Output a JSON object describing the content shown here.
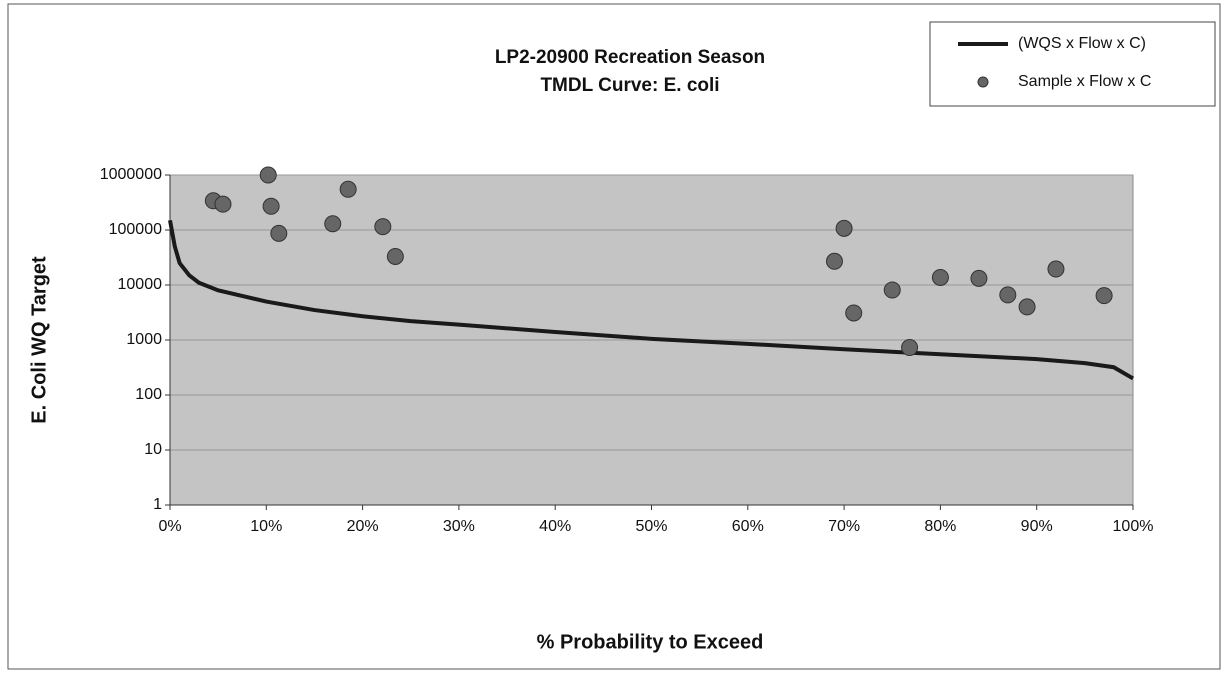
{
  "chart_data": {
    "type": "line",
    "title": "LP2-20900 Recreation Season",
    "subtitle": "TMDL Curve: E. coli",
    "x_label": "% Probability to Exceed",
    "y_label": "E. Coli WQ Target",
    "log_y": true,
    "legend": "top-right",
    "xlim": [
      0,
      100
    ],
    "xticks": [
      {
        "value": 0,
        "label": "0%"
      },
      {
        "value": 10,
        "label": "10%"
      },
      {
        "value": 20,
        "label": "20%"
      },
      {
        "value": 30,
        "label": "30%"
      },
      {
        "value": 40,
        "label": "40%"
      },
      {
        "value": 50,
        "label": "50%"
      },
      {
        "value": 60,
        "label": "60%"
      },
      {
        "value": 70,
        "label": "70%"
      },
      {
        "value": 80,
        "label": "80%"
      },
      {
        "value": 90,
        "label": "90%"
      },
      {
        "value": 100,
        "label": "100%"
      }
    ],
    "ylim": [
      1,
      1000000
    ],
    "yticks": [
      1,
      10,
      100,
      1000,
      10000,
      100000,
      1000000
    ],
    "series": [
      {
        "name": "(WQS x Flow x C)",
        "type": "line",
        "color": "#1a1a1a",
        "x": [
          0,
          0.5,
          1,
          2,
          3,
          5,
          10,
          15,
          20,
          25,
          30,
          40,
          50,
          60,
          70,
          80,
          90,
          95,
          98,
          100
        ],
        "values": [
          150000,
          50000,
          25000,
          15000,
          11000,
          8000,
          5000,
          3500,
          2700,
          2200,
          1900,
          1400,
          1050,
          850,
          680,
          550,
          450,
          380,
          320,
          200
        ]
      },
      {
        "name": "Sample x Flow x C",
        "type": "scatter",
        "color": "#666666",
        "x": [
          4.5,
          5.5,
          10.2,
          10.5,
          11.3,
          16.9,
          18.5,
          22.1,
          23.4,
          69,
          70,
          71,
          75,
          76.8,
          80,
          84,
          87,
          89,
          92,
          97
        ],
        "values": [
          340000,
          295000,
          1000000,
          270000,
          87000,
          130000,
          550000,
          115000,
          33000,
          27000,
          107000,
          3100,
          8100,
          730,
          13700,
          13200,
          6600,
          4000,
          19500,
          6400
        ]
      }
    ]
  }
}
